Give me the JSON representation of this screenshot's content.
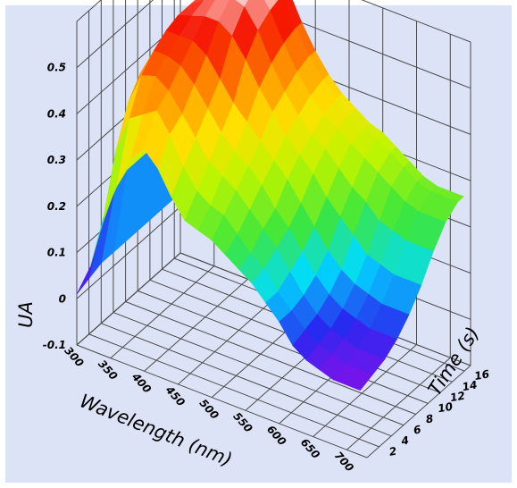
{
  "chart_data": {
    "type": "surface3d",
    "xlabel": "Wavelength (nm)",
    "ylabel": "Time (s)",
    "zlabel": "UA",
    "x_ticks": [
      "300",
      "350",
      "400",
      "450",
      "500",
      "550",
      "600",
      "650",
      "700"
    ],
    "y_ticks": [
      "2",
      "4",
      "6",
      "8",
      "10",
      "12",
      "14",
      "16"
    ],
    "z_ticks": [
      "-0.1",
      "0",
      "0.1",
      "0.2",
      "0.3",
      "0.4",
      "0.5"
    ],
    "xlim": [
      300,
      730
    ],
    "ylim": [
      0,
      17
    ],
    "zlim": [
      -0.1,
      0.6
    ],
    "grid": true,
    "colormap": "rainbow: magenta (low) - blue - cyan - green - yellow - orange - red - white (high)",
    "wavelength_nm": [
      300,
      320,
      340,
      360,
      380,
      400,
      420,
      440,
      460,
      480,
      500,
      520,
      540,
      560,
      580,
      600,
      620,
      640,
      660,
      680,
      700,
      720
    ],
    "time_s": [
      0,
      2,
      4,
      6,
      8,
      10,
      12,
      14,
      16,
      17
    ],
    "ua_rows_by_time": [
      [
        0.01,
        0.08,
        0.2,
        0.28,
        0.35,
        0.38,
        0.35,
        0.3,
        0.26,
        0.25,
        0.24,
        0.22,
        0.2,
        0.18,
        0.15,
        0.12,
        0.08,
        0.06,
        0.05,
        0.04,
        0.04,
        0.04
      ],
      [
        0.02,
        0.15,
        0.32,
        0.4,
        0.42,
        0.44,
        0.4,
        0.34,
        0.3,
        0.28,
        0.27,
        0.24,
        0.21,
        0.19,
        0.15,
        0.12,
        0.09,
        0.07,
        0.06,
        0.05,
        0.05,
        0.05
      ],
      [
        0.03,
        0.2,
        0.4,
        0.47,
        0.48,
        0.46,
        0.42,
        0.38,
        0.34,
        0.32,
        0.3,
        0.27,
        0.24,
        0.21,
        0.17,
        0.13,
        0.1,
        0.08,
        0.07,
        0.06,
        0.06,
        0.06
      ],
      [
        0.03,
        0.22,
        0.44,
        0.5,
        0.5,
        0.49,
        0.46,
        0.42,
        0.38,
        0.35,
        0.33,
        0.3,
        0.26,
        0.23,
        0.19,
        0.15,
        0.12,
        0.1,
        0.09,
        0.08,
        0.08,
        0.08
      ],
      [
        0.03,
        0.22,
        0.44,
        0.52,
        0.52,
        0.52,
        0.5,
        0.46,
        0.42,
        0.39,
        0.36,
        0.33,
        0.3,
        0.26,
        0.22,
        0.18,
        0.15,
        0.13,
        0.12,
        0.11,
        0.11,
        0.11
      ],
      [
        0.03,
        0.22,
        0.44,
        0.53,
        0.54,
        0.55,
        0.55,
        0.53,
        0.49,
        0.44,
        0.4,
        0.36,
        0.33,
        0.3,
        0.26,
        0.23,
        0.2,
        0.17,
        0.16,
        0.15,
        0.15,
        0.15
      ],
      [
        0.03,
        0.22,
        0.44,
        0.53,
        0.55,
        0.57,
        0.58,
        0.57,
        0.53,
        0.47,
        0.42,
        0.38,
        0.35,
        0.33,
        0.3,
        0.27,
        0.25,
        0.22,
        0.21,
        0.2,
        0.2,
        0.2
      ],
      [
        0.03,
        0.22,
        0.44,
        0.53,
        0.56,
        0.58,
        0.59,
        0.59,
        0.55,
        0.49,
        0.44,
        0.4,
        0.37,
        0.35,
        0.33,
        0.31,
        0.29,
        0.27,
        0.25,
        0.24,
        0.24,
        0.24
      ],
      [
        0.03,
        0.22,
        0.44,
        0.53,
        0.56,
        0.58,
        0.6,
        0.6,
        0.56,
        0.5,
        0.45,
        0.41,
        0.38,
        0.36,
        0.34,
        0.33,
        0.31,
        0.29,
        0.27,
        0.26,
        0.26,
        0.26
      ],
      [
        0.03,
        0.22,
        0.44,
        0.53,
        0.56,
        0.58,
        0.6,
        0.6,
        0.56,
        0.5,
        0.45,
        0.41,
        0.38,
        0.36,
        0.34,
        0.33,
        0.31,
        0.29,
        0.27,
        0.26,
        0.26,
        0.26
      ]
    ]
  }
}
